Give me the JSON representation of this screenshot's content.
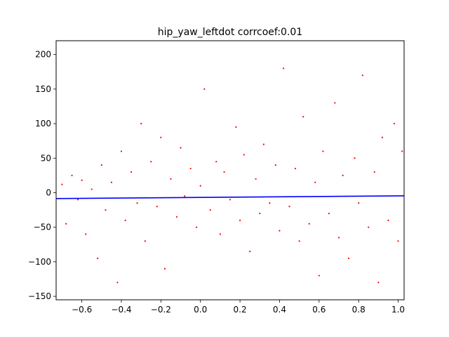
{
  "chart_data": {
    "type": "scatter",
    "title": "hip_yaw_leftdot corrcoef:0.01",
    "xlabel": "",
    "ylabel": "",
    "xlim": [
      -0.73,
      1.03
    ],
    "ylim": [
      -155,
      220
    ],
    "x_ticks": [
      -0.6,
      -0.4,
      -0.2,
      0.0,
      0.2,
      0.4,
      0.6,
      0.8,
      1.0
    ],
    "x_tick_labels": [
      "−0.6",
      "−0.4",
      "−0.2",
      "0.0",
      "0.2",
      "0.4",
      "0.6",
      "0.8",
      "1.0"
    ],
    "y_ticks": [
      -150,
      -100,
      -50,
      0,
      50,
      100,
      150,
      200
    ],
    "y_tick_labels": [
      "−150",
      "−100",
      "−50",
      "0",
      "50",
      "100",
      "150",
      "200"
    ],
    "grid": false,
    "legend": "none",
    "scatter_color": "#ff0000",
    "fit_color": "#0000ff",
    "scatter_points": [
      [
        -0.7,
        12
      ],
      [
        -0.68,
        -45
      ],
      [
        -0.65,
        25
      ],
      [
        -0.62,
        -10
      ],
      [
        -0.6,
        18
      ],
      [
        -0.58,
        -60
      ],
      [
        -0.55,
        5
      ],
      [
        -0.52,
        -95
      ],
      [
        -0.5,
        40
      ],
      [
        -0.48,
        -25
      ],
      [
        -0.45,
        15
      ],
      [
        -0.42,
        -130
      ],
      [
        -0.4,
        60
      ],
      [
        -0.38,
        -40
      ],
      [
        -0.35,
        30
      ],
      [
        -0.32,
        -15
      ],
      [
        -0.3,
        100
      ],
      [
        -0.28,
        -70
      ],
      [
        -0.25,
        45
      ],
      [
        -0.22,
        -20
      ],
      [
        -0.2,
        80
      ],
      [
        -0.18,
        -110
      ],
      [
        -0.15,
        20
      ],
      [
        -0.12,
        -35
      ],
      [
        -0.1,
        65
      ],
      [
        -0.08,
        -5
      ],
      [
        -0.05,
        35
      ],
      [
        -0.02,
        -50
      ],
      [
        0.0,
        10
      ],
      [
        0.02,
        150
      ],
      [
        0.05,
        -25
      ],
      [
        0.08,
        45
      ],
      [
        0.1,
        -60
      ],
      [
        0.12,
        30
      ],
      [
        0.15,
        -10
      ],
      [
        0.18,
        95
      ],
      [
        0.2,
        -40
      ],
      [
        0.22,
        55
      ],
      [
        0.25,
        -85
      ],
      [
        0.28,
        20
      ],
      [
        0.3,
        -30
      ],
      [
        0.32,
        70
      ],
      [
        0.35,
        -15
      ],
      [
        0.38,
        40
      ],
      [
        0.4,
        -55
      ],
      [
        0.42,
        180
      ],
      [
        0.45,
        -20
      ],
      [
        0.48,
        35
      ],
      [
        0.5,
        -70
      ],
      [
        0.52,
        110
      ],
      [
        0.55,
        -45
      ],
      [
        0.58,
        15
      ],
      [
        0.6,
        -120
      ],
      [
        0.62,
        60
      ],
      [
        0.65,
        -30
      ],
      [
        0.68,
        130
      ],
      [
        0.7,
        -65
      ],
      [
        0.72,
        25
      ],
      [
        0.75,
        -95
      ],
      [
        0.78,
        50
      ],
      [
        0.8,
        -15
      ],
      [
        0.82,
        170
      ],
      [
        0.85,
        -50
      ],
      [
        0.88,
        30
      ],
      [
        0.9,
        -130
      ],
      [
        0.92,
        80
      ],
      [
        0.95,
        -40
      ],
      [
        0.98,
        100
      ],
      [
        1.0,
        -70
      ],
      [
        1.02,
        60
      ]
    ],
    "fit_line": {
      "x": [
        -0.73,
        1.03
      ],
      "y": [
        -8.5,
        -4.5
      ]
    }
  }
}
